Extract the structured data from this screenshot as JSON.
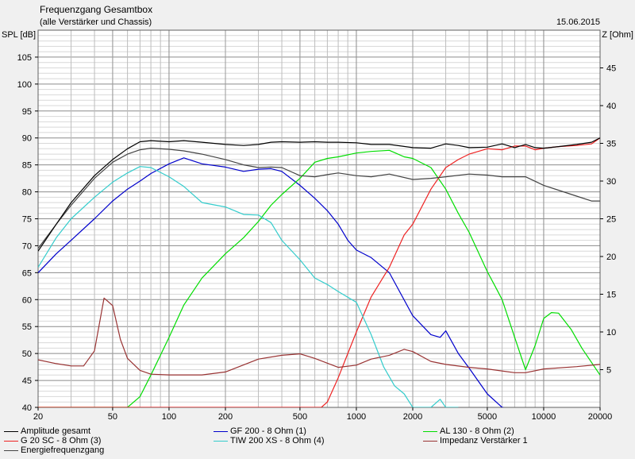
{
  "header": {
    "title": "Frequenzgang Gesamtbox",
    "subtitle": "(alle Verstärker und Chassis)",
    "date": "15.06.2015"
  },
  "chart_data": {
    "type": "line",
    "title": "Frequenzgang Gesamtbox",
    "subtitle": "(alle Verstärker und Chassis)",
    "x_scale": "log",
    "xlim": [
      20,
      20000
    ],
    "x_ticks": [
      20,
      50,
      100,
      200,
      500,
      1000,
      2000,
      5000,
      10000,
      20000
    ],
    "x_tick_labels": [
      "20",
      "50",
      "100",
      "200",
      "500",
      "1000",
      "2000",
      "5000",
      "10000",
      "20000"
    ],
    "ylabel": "SPL [dB]",
    "ylim": [
      40,
      110
    ],
    "y_ticks": [
      40,
      45,
      50,
      55,
      60,
      65,
      70,
      75,
      80,
      85,
      90,
      95,
      100,
      105
    ],
    "y2label": "Z [Ohm]",
    "y2lim": [
      0,
      50
    ],
    "y2_ticks": [
      5,
      10,
      15,
      20,
      25,
      30,
      35,
      40,
      45
    ],
    "grid": true,
    "legend_position": "bottom",
    "series": [
      {
        "name": "Amplitude gesamt",
        "color": "#000000",
        "axis": "left",
        "x": [
          20,
          25,
          30,
          40,
          50,
          60,
          70,
          80,
          100,
          120,
          150,
          200,
          250,
          300,
          350,
          400,
          500,
          600,
          700,
          800,
          1000,
          1200,
          1500,
          2000,
          2500,
          3000,
          3500,
          4000,
          5000,
          6000,
          7000,
          8000,
          9000,
          10000,
          12000,
          15000,
          18000,
          20000
        ],
        "y": [
          69,
          74,
          78,
          83,
          86,
          88,
          89.3,
          89.5,
          89.3,
          89.5,
          89.2,
          88.8,
          88.6,
          88.8,
          89.2,
          89.3,
          89.2,
          89.3,
          89.2,
          89.2,
          89.1,
          88.8,
          88.8,
          88.2,
          88.1,
          88.9,
          88.6,
          88.2,
          88.3,
          88.9,
          88.2,
          88.8,
          88.2,
          88.1,
          88.4,
          88.8,
          89.2,
          90
        ]
      },
      {
        "name": "GF 200 - 8 Ohm (1)",
        "color": "#0000cc",
        "axis": "left",
        "x": [
          20,
          25,
          30,
          40,
          50,
          60,
          70,
          80,
          100,
          120,
          150,
          200,
          250,
          300,
          350,
          400,
          500,
          600,
          700,
          800,
          900,
          1000,
          1200,
          1500,
          2000,
          2500,
          2800,
          3000,
          3500,
          4000,
          5000,
          6000,
          7000
        ],
        "y": [
          65,
          68.5,
          71,
          75,
          78.3,
          80.5,
          82,
          83.4,
          85.2,
          86.3,
          85.2,
          84.6,
          83.8,
          84.2,
          84.3,
          83.8,
          81.2,
          78.8,
          76.5,
          74,
          71,
          69.2,
          67.8,
          65,
          57,
          53.5,
          53,
          54.2,
          50,
          47.3,
          42.5,
          40,
          39.5
        ]
      },
      {
        "name": "AL 130 - 8 Ohm (2)",
        "color": "#00dd00",
        "axis": "left",
        "x": [
          20,
          50,
          60,
          70,
          80,
          100,
          120,
          150,
          200,
          250,
          300,
          350,
          400,
          500,
          600,
          700,
          800,
          1000,
          1200,
          1500,
          1800,
          2000,
          2500,
          3000,
          3500,
          4000,
          5000,
          5500,
          6000,
          7000,
          8000,
          9000,
          10000,
          11000,
          12000,
          14000,
          16000,
          20000
        ],
        "y": [
          40,
          40,
          40,
          42,
          46,
          53,
          59,
          64,
          68.5,
          71.5,
          74.5,
          77.5,
          79.5,
          82.5,
          85.5,
          86.2,
          86.5,
          87.2,
          87.5,
          87.7,
          86.5,
          86.2,
          84.5,
          80.5,
          76,
          72.5,
          65.2,
          62.5,
          60,
          53,
          47,
          51.5,
          56.5,
          57.6,
          57.5,
          54.5,
          51,
          46
        ]
      },
      {
        "name": "G 20 SC - 8 Ohm (3)",
        "color": "#ee2222",
        "axis": "left",
        "x": [
          20,
          650,
          700,
          800,
          900,
          1000,
          1200,
          1500,
          1800,
          2000,
          2500,
          3000,
          3500,
          4000,
          5000,
          6000,
          7000,
          8000,
          9000,
          10000,
          12000,
          15000,
          18000,
          20000
        ],
        "y": [
          40,
          40,
          41,
          45.5,
          50,
          54,
          60.5,
          66,
          72,
          74,
          80.5,
          84.5,
          86,
          87,
          88,
          87.8,
          88.5,
          88.5,
          87.8,
          88.1,
          88.4,
          88.6,
          88.9,
          90
        ]
      },
      {
        "name": "TIW 200 XS - 8 Ohm (4)",
        "color": "#33cccc",
        "axis": "left",
        "x": [
          20,
          25,
          30,
          40,
          50,
          60,
          70,
          80,
          100,
          120,
          150,
          200,
          250,
          300,
          350,
          400,
          500,
          600,
          700,
          800,
          1000,
          1200,
          1400,
          1600,
          1800,
          2000,
          2200,
          2500,
          2800,
          3000,
          3500
        ],
        "y": [
          66,
          71.5,
          75,
          79,
          81.8,
          83.5,
          84.7,
          84.5,
          82.8,
          81,
          78,
          77.2,
          75.8,
          75.7,
          74.3,
          71,
          67.4,
          64,
          62.8,
          61.5,
          59.5,
          53.5,
          47.5,
          44,
          42.5,
          40,
          40,
          40,
          41.5,
          40,
          40
        ]
      },
      {
        "name": "Impedanz Verstärker 1",
        "color": "#993333",
        "axis": "right",
        "x": [
          20,
          25,
          30,
          35,
          40,
          45,
          50,
          55,
          60,
          70,
          80,
          100,
          150,
          200,
          300,
          400,
          500,
          600,
          800,
          1000,
          1200,
          1500,
          1800,
          2000,
          2500,
          3000,
          4000,
          5000,
          7000,
          8000,
          10000,
          15000,
          20000
        ],
        "y": [
          6.3,
          5.8,
          5.5,
          5.5,
          7.5,
          14.5,
          13.5,
          9,
          6.5,
          4.9,
          4.4,
          4.3,
          4.3,
          4.7,
          6.4,
          6.9,
          7.1,
          6.5,
          5.3,
          5.6,
          6.4,
          6.9,
          7.7,
          7.4,
          6.1,
          5.7,
          5.3,
          5.1,
          4.6,
          4.6,
          5.1,
          5.4,
          5.7
        ]
      },
      {
        "name": "Energiefrequenzgang",
        "color": "#444444",
        "axis": "left",
        "x": [
          20,
          25,
          30,
          40,
          50,
          60,
          70,
          80,
          100,
          120,
          150,
          200,
          250,
          300,
          350,
          400,
          500,
          600,
          700,
          800,
          1000,
          1200,
          1500,
          2000,
          2500,
          3000,
          4000,
          5000,
          6000,
          8000,
          10000,
          12000,
          15000,
          18000,
          20000
        ],
        "y": [
          69.5,
          74,
          77.5,
          82.5,
          85.5,
          87,
          87.8,
          88.1,
          87.9,
          87.6,
          87,
          86,
          85,
          84.5,
          84.6,
          84.5,
          83,
          82.8,
          83.2,
          83.5,
          83,
          82.8,
          83.3,
          82.3,
          82.5,
          82.8,
          83.3,
          83.1,
          82.8,
          82.8,
          81.2,
          80.3,
          79.2,
          78.3,
          78.3
        ]
      }
    ]
  },
  "legend": {
    "items": [
      {
        "label": "Amplitude gesamt",
        "color": "#000000"
      },
      {
        "label": "GF 200 - 8 Ohm (1)",
        "color": "#0000cc"
      },
      {
        "label": "AL 130 - 8 Ohm (2)",
        "color": "#00dd00"
      },
      {
        "label": "G 20 SC - 8 Ohm (3)",
        "color": "#ee2222"
      },
      {
        "label": "TIW 200 XS - 8 Ohm (4)",
        "color": "#33cccc"
      },
      {
        "label": "Impedanz Verstärker 1",
        "color": "#993333"
      },
      {
        "label": "Energiefrequenzgang",
        "color": "#444444"
      }
    ]
  }
}
